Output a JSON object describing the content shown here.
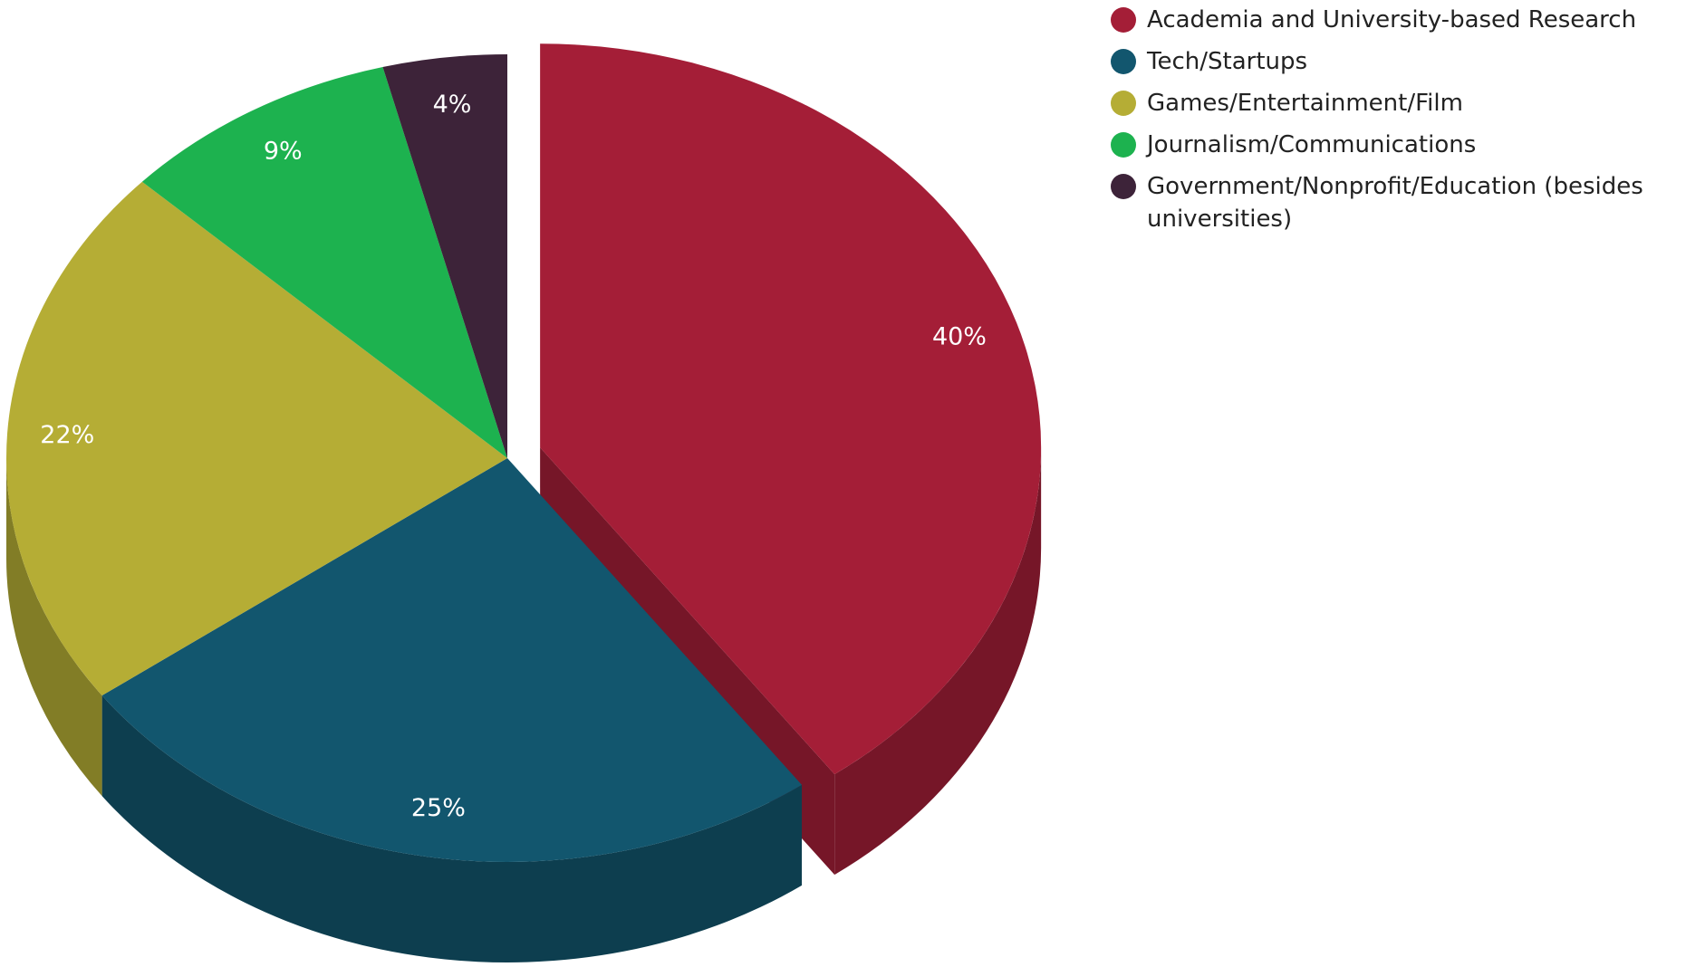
{
  "chart_data": {
    "type": "pie",
    "categories": [
      "Academia and University-based Research",
      "Tech/Startups",
      "Games/Entertainment/Film",
      "Journalism/Communications",
      "Government/Nonprofit/Education (besides universities)"
    ],
    "values": [
      40,
      25,
      22,
      9,
      4
    ],
    "value_labels": [
      "40%",
      "25%",
      "22%",
      "9%",
      "4%"
    ],
    "colors": [
      "#a41e37",
      "#12566e",
      "#b5ad35",
      "#1db24f",
      "#3d2339"
    ],
    "legend": "top-right"
  }
}
